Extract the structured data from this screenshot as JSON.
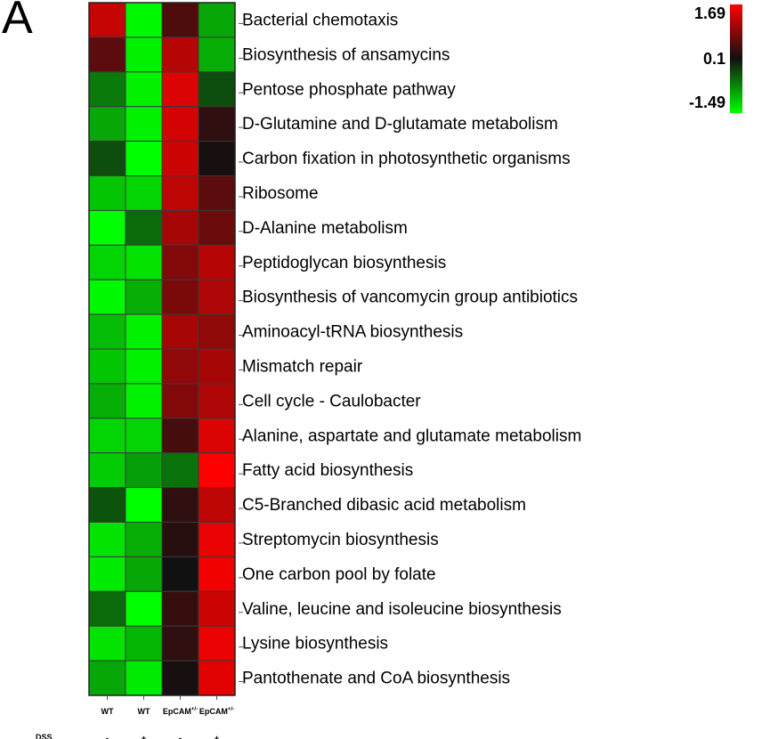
{
  "panel_letter": "A",
  "chart_data": {
    "type": "heatmap",
    "rows": [
      "Bacterial chemotaxis",
      "Biosynthesis of ansamycins",
      "Pentose phosphate pathway",
      "D-Glutamine and D-glutamate metabolism",
      "Carbon fixation in photosynthetic organisms",
      "Ribosome",
      "D-Alanine metabolism",
      "Peptidoglycan biosynthesis",
      "Biosynthesis of vancomycin group antibiotics",
      "Aminoacyl-tRNA biosynthesis",
      "Mismatch repair",
      "Cell cycle - Caulobacter",
      "Alanine, aspartate and glutamate metabolism",
      "Fatty acid biosynthesis",
      "C5-Branched dibasic acid metabolism",
      "Streptomycin biosynthesis",
      "One carbon pool by folate",
      "Valine, leucine and isoleucine biosynthesis",
      "Lysine biosynthesis",
      "Pantothenate and CoA biosynthesis"
    ],
    "columns": [
      {
        "label": "WT",
        "sup": "",
        "dss": "-"
      },
      {
        "label": "WT",
        "sup": "",
        "dss": "+"
      },
      {
        "label": "EpCAM",
        "sup": "+/-",
        "dss": "-"
      },
      {
        "label": "EpCAM",
        "sup": "+/-",
        "dss": "+"
      }
    ],
    "dss_label": "DSS",
    "values": [
      [
        1.3,
        -1.45,
        0.5,
        -0.9
      ],
      [
        0.6,
        -1.4,
        1.2,
        -0.95
      ],
      [
        -0.6,
        -1.4,
        1.45,
        -0.3
      ],
      [
        -0.9,
        -1.4,
        1.4,
        0.3
      ],
      [
        -0.3,
        -1.49,
        1.35,
        0.15
      ],
      [
        -1.1,
        -1.2,
        1.25,
        0.6
      ],
      [
        -1.49,
        -0.5,
        1.1,
        0.7
      ],
      [
        -1.2,
        -1.3,
        0.85,
        1.2
      ],
      [
        -1.45,
        -0.95,
        0.8,
        1.15
      ],
      [
        -1.05,
        -1.4,
        1.1,
        0.95
      ],
      [
        -1.1,
        -1.4,
        0.95,
        1.1
      ],
      [
        -0.95,
        -1.4,
        0.85,
        1.15
      ],
      [
        -1.2,
        -1.2,
        0.45,
        1.45
      ],
      [
        -1.15,
        -0.85,
        -0.55,
        1.69
      ],
      [
        -0.35,
        -1.49,
        0.3,
        1.25
      ],
      [
        -1.3,
        -0.95,
        0.25,
        1.55
      ],
      [
        -1.35,
        -0.9,
        0.1,
        1.6
      ],
      [
        -0.5,
        -1.49,
        0.35,
        1.35
      ],
      [
        -1.3,
        -1.0,
        0.3,
        1.55
      ],
      [
        -0.9,
        -1.35,
        0.15,
        1.5
      ]
    ],
    "scale": {
      "min": -1.49,
      "mid": 0.1,
      "max": 1.69,
      "colors": {
        "low": "#00ff00",
        "mid": "#111111",
        "high": "#ff0000"
      }
    },
    "colorbar_labels": [
      "1.69",
      "0.1",
      "-1.49"
    ]
  }
}
